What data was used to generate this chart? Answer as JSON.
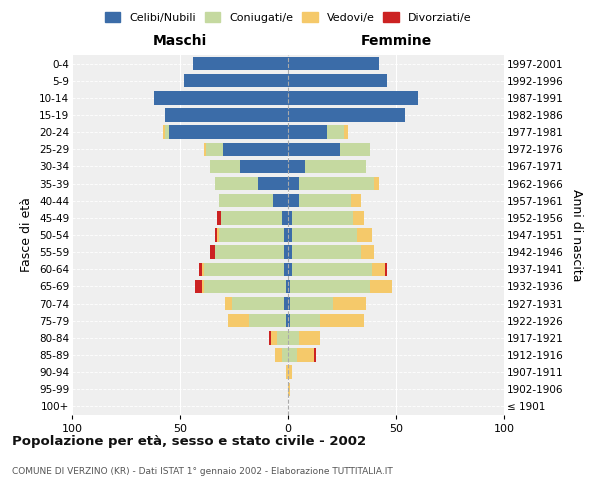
{
  "age_groups": [
    "100+",
    "95-99",
    "90-94",
    "85-89",
    "80-84",
    "75-79",
    "70-74",
    "65-69",
    "60-64",
    "55-59",
    "50-54",
    "45-49",
    "40-44",
    "35-39",
    "30-34",
    "25-29",
    "20-24",
    "15-19",
    "10-14",
    "5-9",
    "0-4"
  ],
  "birth_years": [
    "≤ 1901",
    "1902-1906",
    "1907-1911",
    "1912-1916",
    "1917-1921",
    "1922-1926",
    "1927-1931",
    "1932-1936",
    "1937-1941",
    "1942-1946",
    "1947-1951",
    "1952-1956",
    "1957-1961",
    "1962-1966",
    "1967-1971",
    "1972-1976",
    "1977-1981",
    "1982-1986",
    "1987-1991",
    "1992-1996",
    "1997-2001"
  ],
  "males_celibe": [
    0,
    0,
    0,
    0,
    0,
    1,
    2,
    1,
    2,
    2,
    2,
    3,
    7,
    14,
    22,
    30,
    55,
    57,
    62,
    48,
    44
  ],
  "males_coniugato": [
    0,
    0,
    0,
    3,
    5,
    17,
    24,
    38,
    37,
    32,
    30,
    28,
    25,
    20,
    14,
    8,
    2,
    0,
    0,
    0,
    0
  ],
  "males_vedovo": [
    0,
    0,
    1,
    3,
    3,
    10,
    3,
    1,
    1,
    0,
    1,
    0,
    0,
    0,
    0,
    1,
    1,
    0,
    0,
    0,
    0
  ],
  "males_divorziato": [
    0,
    0,
    0,
    0,
    1,
    0,
    0,
    3,
    1,
    2,
    1,
    2,
    0,
    0,
    0,
    0,
    0,
    0,
    0,
    0,
    0
  ],
  "females_nubile": [
    0,
    0,
    0,
    0,
    0,
    1,
    1,
    1,
    2,
    2,
    2,
    2,
    5,
    5,
    8,
    24,
    18,
    54,
    60,
    46,
    42
  ],
  "females_coniugata": [
    0,
    0,
    0,
    4,
    5,
    14,
    20,
    37,
    37,
    32,
    30,
    28,
    24,
    35,
    28,
    14,
    8,
    0,
    0,
    0,
    0
  ],
  "females_vedova": [
    0,
    1,
    2,
    8,
    10,
    20,
    15,
    10,
    6,
    6,
    7,
    5,
    5,
    2,
    0,
    0,
    2,
    0,
    0,
    0,
    0
  ],
  "females_divorziata": [
    0,
    0,
    0,
    1,
    0,
    0,
    0,
    0,
    1,
    0,
    0,
    0,
    0,
    0,
    0,
    0,
    0,
    0,
    0,
    0,
    0
  ],
  "color_celibe": "#3B6CA8",
  "color_coniugato": "#C5D9A0",
  "color_vedovo": "#F5C96A",
  "color_divorziato": "#CC2222",
  "xlim": 100,
  "title": "Popolazione per età, sesso e stato civile - 2002",
  "subtitle": "COMUNE DI VERZINO (KR) - Dati ISTAT 1° gennaio 2002 - Elaborazione TUTTITALIA.IT",
  "ylabel_left": "Fasce di età",
  "ylabel_right": "Anni di nascita",
  "label_maschi": "Maschi",
  "label_femmine": "Femmine",
  "legend_labels": [
    "Celibi/Nubili",
    "Coniugati/e",
    "Vedovi/e",
    "Divorziati/e"
  ],
  "legend_colors": [
    "#3B6CA8",
    "#C5D9A0",
    "#F5C96A",
    "#CC2222"
  ],
  "background_color": "#FFFFFF",
  "plot_bg_color": "#EFEFEF"
}
